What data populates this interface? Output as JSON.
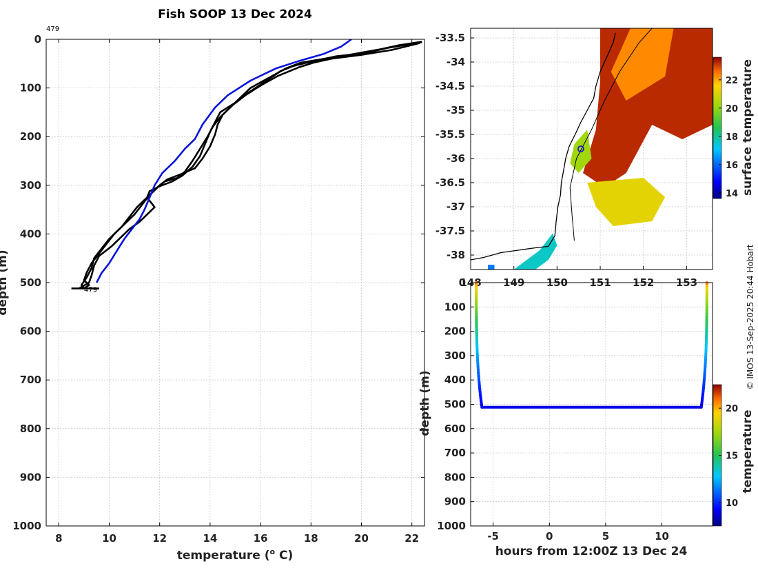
{
  "figure_title": "Fish SOOP 13 Dec 2024",
  "credit": "© IMOS 13-Sep-2025 20:44 Hobart",
  "colors": {
    "profile_black": "#000000",
    "profile_blue": "#0a14dc",
    "ship_marker": "#1a1ad0",
    "coast": "#000000"
  },
  "chart_data": [
    {
      "id": "profile",
      "type": "line",
      "title": "Fish SOOP 13 Dec 2024",
      "xlabel": "temperature (",
      "xlabel_sup": "o",
      "xlabel_end": " C)",
      "ylabel": "depth (m)",
      "xlim": [
        7.5,
        22.5
      ],
      "ylim": [
        1000,
        0
      ],
      "xticks": [
        8,
        10,
        12,
        14,
        16,
        18,
        20,
        22
      ],
      "yticks": [
        0,
        100,
        200,
        300,
        400,
        500,
        600,
        700,
        800,
        900,
        1000
      ],
      "top_annotation": "479",
      "bottom_annotation": "479",
      "bottom_annotation_at": [
        9.0,
        512
      ],
      "grid": true,
      "series": [
        {
          "name": "cast-1",
          "color": "black",
          "points": [
            [
              22.4,
              5
            ],
            [
              21.5,
              12
            ],
            [
              20.8,
              20
            ],
            [
              19.5,
              32
            ],
            [
              18.3,
              42
            ],
            [
              17.6,
              48
            ],
            [
              17.0,
              60
            ],
            [
              16.3,
              80
            ],
            [
              15.6,
              100
            ],
            [
              15.2,
              120
            ],
            [
              14.8,
              140
            ],
            [
              14.4,
              160
            ],
            [
              14.1,
              180
            ],
            [
              13.9,
              200
            ],
            [
              13.6,
              225
            ],
            [
              13.3,
              250
            ],
            [
              13.0,
              272
            ],
            [
              12.7,
              285
            ],
            [
              12.2,
              292
            ],
            [
              11.9,
              305
            ],
            [
              11.6,
              320
            ],
            [
              11.3,
              340
            ],
            [
              11.0,
              360
            ],
            [
              10.7,
              375
            ],
            [
              10.4,
              390
            ],
            [
              10.0,
              410
            ],
            [
              9.7,
              430
            ],
            [
              9.4,
              450
            ],
            [
              9.3,
              470
            ],
            [
              9.1,
              490
            ],
            [
              8.9,
              505
            ],
            [
              9.0,
              512
            ]
          ]
        },
        {
          "name": "cast-2",
          "color": "black",
          "points": [
            [
              22.4,
              6
            ],
            [
              21.0,
              18
            ],
            [
              20.2,
              28
            ],
            [
              19.0,
              35
            ],
            [
              18.0,
              46
            ],
            [
              17.3,
              55
            ],
            [
              16.8,
              65
            ],
            [
              16.1,
              90
            ],
            [
              15.5,
              110
            ],
            [
              15.0,
              130
            ],
            [
              14.4,
              150
            ],
            [
              14.2,
              170
            ],
            [
              14.0,
              190
            ],
            [
              13.8,
              215
            ],
            [
              13.6,
              240
            ],
            [
              13.3,
              262
            ],
            [
              12.9,
              280
            ],
            [
              12.5,
              292
            ],
            [
              12.0,
              302
            ],
            [
              11.6,
              312
            ],
            [
              11.5,
              325
            ],
            [
              11.8,
              345
            ],
            [
              11.5,
              360
            ],
            [
              11.2,
              375
            ],
            [
              10.8,
              390
            ],
            [
              10.5,
              405
            ],
            [
              10.1,
              425
            ],
            [
              9.6,
              445
            ],
            [
              9.4,
              465
            ],
            [
              9.3,
              485
            ],
            [
              9.2,
              500
            ],
            [
              8.8,
              512
            ]
          ]
        },
        {
          "name": "cast-3",
          "color": "black",
          "points": [
            [
              22.3,
              8
            ],
            [
              21.2,
              22
            ],
            [
              20.0,
              32
            ],
            [
              18.8,
              40
            ],
            [
              18.1,
              48
            ],
            [
              17.5,
              58
            ],
            [
              16.7,
              75
            ],
            [
              16.0,
              95
            ],
            [
              15.4,
              115
            ],
            [
              14.9,
              135
            ],
            [
              14.5,
              155
            ],
            [
              14.3,
              175
            ],
            [
              14.2,
              195
            ],
            [
              14.0,
              220
            ],
            [
              13.7,
              245
            ],
            [
              13.4,
              265
            ],
            [
              12.8,
              278
            ],
            [
              12.3,
              288
            ],
            [
              12.0,
              300
            ],
            [
              11.7,
              315
            ],
            [
              11.4,
              330
            ],
            [
              11.1,
              345
            ],
            [
              10.8,
              365
            ],
            [
              10.5,
              385
            ],
            [
              10.2,
              400
            ],
            [
              9.9,
              420
            ],
            [
              9.6,
              440
            ],
            [
              9.3,
              460
            ],
            [
              9.1,
              480
            ],
            [
              9.0,
              495
            ],
            [
              9.2,
              505
            ],
            [
              9.0,
              512
            ]
          ]
        },
        {
          "name": "cast-4",
          "color": "blue",
          "points": [
            [
              19.6,
              0
            ],
            [
              19.2,
              15
            ],
            [
              18.5,
              30
            ],
            [
              17.5,
              45
            ],
            [
              16.6,
              60
            ],
            [
              15.6,
              85
            ],
            [
              14.7,
              115
            ],
            [
              14.2,
              140
            ],
            [
              13.7,
              175
            ],
            [
              13.4,
              205
            ],
            [
              13.0,
              225
            ],
            [
              12.6,
              250
            ],
            [
              12.1,
              275
            ],
            [
              11.8,
              300
            ],
            [
              11.6,
              325
            ],
            [
              11.4,
              350
            ],
            [
              11.2,
              370
            ],
            [
              10.9,
              390
            ],
            [
              10.6,
              410
            ],
            [
              10.3,
              435
            ],
            [
              10.0,
              460
            ],
            [
              9.7,
              480
            ],
            [
              9.5,
              500
            ]
          ]
        }
      ],
      "bottom_stroke": [
        [
          8.5,
          512
        ],
        [
          9.6,
          512
        ]
      ]
    },
    {
      "id": "sst_map",
      "type": "heatmap",
      "xlabel": "",
      "ylabel": "",
      "xlim": [
        148.0,
        153.6
      ],
      "ylim": [
        -38.3,
        -33.3
      ],
      "xticks": [
        148,
        149,
        150,
        151,
        152,
        153
      ],
      "xtick_labels": [
        "148",
        "149",
        "150",
        "151",
        "152",
        "153"
      ],
      "yticks": [
        -33.5,
        -34,
        -34.5,
        -35,
        -35.5,
        -36,
        -36.5,
        -37,
        -37.5,
        -38
      ],
      "ytick_labels": [
        "-33.5",
        "-34",
        "-34.5",
        "-35",
        "-35.5",
        "-36",
        "-36.5",
        "-37",
        "-37.5",
        "-38"
      ],
      "colorbar_label": "surface temperature",
      "colorbar_range": [
        13.6,
        23.6
      ],
      "colorbar_ticks": [
        14,
        16,
        18,
        20,
        22
      ],
      "ship_position": [
        150.55,
        -35.8
      ],
      "coastline": [
        [
          148.0,
          -38.1
        ],
        [
          148.3,
          -38.05
        ],
        [
          148.7,
          -37.95
        ],
        [
          149.1,
          -37.9
        ],
        [
          149.5,
          -37.85
        ],
        [
          149.8,
          -37.82
        ],
        [
          149.95,
          -37.6
        ],
        [
          149.98,
          -37.3
        ],
        [
          150.02,
          -37.0
        ],
        [
          150.08,
          -36.75
        ],
        [
          150.1,
          -36.5
        ],
        [
          150.15,
          -36.25
        ],
        [
          150.2,
          -36.0
        ],
        [
          150.28,
          -35.75
        ],
        [
          150.42,
          -35.5
        ],
        [
          150.55,
          -35.25
        ],
        [
          150.7,
          -35.0
        ],
        [
          150.85,
          -34.75
        ],
        [
          150.9,
          -34.5
        ],
        [
          151.0,
          -34.2
        ],
        [
          151.1,
          -34.0
        ],
        [
          151.2,
          -33.8
        ],
        [
          151.3,
          -33.6
        ],
        [
          151.35,
          -33.4
        ]
      ],
      "track": [
        [
          150.4,
          -37.7
        ],
        [
          150.35,
          -37.2
        ],
        [
          150.3,
          -36.6
        ],
        [
          150.45,
          -36.0
        ],
        [
          150.8,
          -35.4
        ],
        [
          151.1,
          -34.8
        ],
        [
          151.45,
          -34.2
        ],
        [
          151.9,
          -33.6
        ],
        [
          152.2,
          -33.3
        ]
      ],
      "sst_regions": [
        {
          "name": "warm-core",
          "value": 23.2,
          "polygon": [
            [
              151.0,
              -33.3
            ],
            [
              153.6,
              -33.3
            ],
            [
              153.6,
              -35.3
            ],
            [
              152.9,
              -35.6
            ],
            [
              152.2,
              -35.3
            ],
            [
              151.6,
              -36.3
            ],
            [
              151.1,
              -36.6
            ],
            [
              150.6,
              -36.3
            ],
            [
              150.9,
              -35.4
            ],
            [
              151.0,
              -34.4
            ]
          ]
        },
        {
          "name": "warm-shelf",
          "value": 22.3,
          "polygon": [
            [
              151.7,
              -33.3
            ],
            [
              152.7,
              -33.3
            ],
            [
              152.5,
              -34.3
            ],
            [
              151.6,
              -34.8
            ],
            [
              151.25,
              -34.2
            ]
          ]
        },
        {
          "name": "mid-orange",
          "value": 21.2,
          "polygon": [
            [
              150.7,
              -36.5
            ],
            [
              152.0,
              -36.4
            ],
            [
              152.5,
              -36.8
            ],
            [
              152.2,
              -37.3
            ],
            [
              151.3,
              -37.4
            ],
            [
              150.9,
              -37.0
            ]
          ]
        },
        {
          "name": "cool-shelf",
          "value": 20.2,
          "polygon": [
            [
              150.4,
              -35.7
            ],
            [
              150.7,
              -35.4
            ],
            [
              150.8,
              -36.0
            ],
            [
              150.5,
              -36.3
            ],
            [
              150.3,
              -36.1
            ]
          ]
        },
        {
          "name": "coastal-green",
          "value": 17.6,
          "polygon": [
            [
              149.0,
              -38.3
            ],
            [
              149.6,
              -37.9
            ],
            [
              149.9,
              -37.55
            ],
            [
              150.0,
              -37.8
            ],
            [
              149.8,
              -38.1
            ],
            [
              149.5,
              -38.3
            ]
          ]
        },
        {
          "name": "coastal-teal",
          "value": 16.2,
          "polygon": [
            [
              148.4,
              -38.2
            ],
            [
              148.55,
              -38.2
            ],
            [
              148.55,
              -38.3
            ],
            [
              148.4,
              -38.3
            ]
          ]
        }
      ]
    },
    {
      "id": "depth_time",
      "type": "scatter",
      "xlabel": "hours from 12:00Z 13 Dec 24",
      "ylabel": "depth (m)",
      "xlim": [
        -7,
        14.5
      ],
      "ylim": [
        1000,
        0
      ],
      "xticks": [
        -5,
        0,
        5,
        10
      ],
      "yticks": [
        0,
        100,
        200,
        300,
        400,
        500,
        600,
        700,
        800,
        900,
        1000
      ],
      "colorbar_label": "temperature",
      "colorbar_range": [
        7.5,
        22.5
      ],
      "colorbar_ticks": [
        10,
        15,
        20
      ],
      "trace": {
        "start_hour": -6.5,
        "end_hour": 14.0,
        "bottom_depth": 512,
        "descent_end_hour": -6.0,
        "ascent_start_hour": 13.5,
        "bottom_temperature": 9.0,
        "surface_temperature": 22.4
      }
    }
  ]
}
